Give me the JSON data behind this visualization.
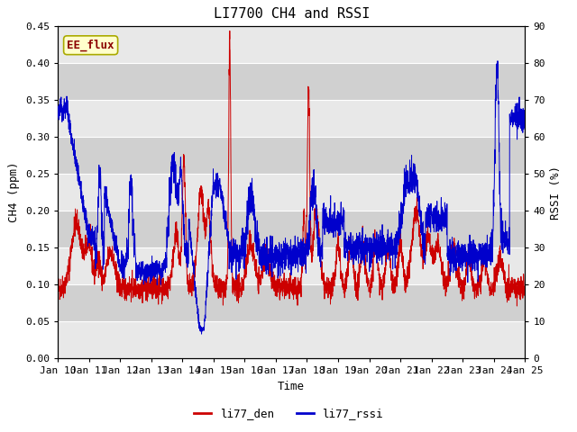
{
  "title": "LI7700 CH4 and RSSI",
  "xlabel": "Time",
  "ylabel_left": "CH4 (ppm)",
  "ylabel_right": "RSSI (%)",
  "ylim_left": [
    0.0,
    0.45
  ],
  "ylim_right": [
    0,
    90
  ],
  "yticks_left": [
    0.0,
    0.05,
    0.1,
    0.15,
    0.2,
    0.25,
    0.3,
    0.35,
    0.4,
    0.45
  ],
  "yticks_right": [
    0,
    10,
    20,
    30,
    40,
    50,
    60,
    70,
    80,
    90
  ],
  "xtick_labels": [
    "Jan 10",
    "Jan 11",
    "Jan 12",
    "Jan 13",
    "Jan 14",
    "Jan 15",
    "Jan 16",
    "Jan 17",
    "Jan 18",
    "Jan 19",
    "Jan 20",
    "Jan 21",
    "Jan 22",
    "Jan 23",
    "Jan 24",
    "Jan 25"
  ],
  "color_ch4": "#cc0000",
  "color_rssi": "#0000cc",
  "legend_labels": [
    "li77_den",
    "li77_rssi"
  ],
  "annotation_text": "EE_flux",
  "annotation_color": "#8b0000",
  "annotation_bg": "#ffffcc",
  "annotation_border": "#aaaa00",
  "bg_color_light": "#e8e8e8",
  "bg_color_dark": "#d0d0d0",
  "grid_color": "#ffffff",
  "fig_bg": "#ffffff",
  "title_fontsize": 11,
  "axis_label_fontsize": 9,
  "tick_fontsize": 8,
  "annot_fontsize": 9,
  "legend_fontsize": 9
}
